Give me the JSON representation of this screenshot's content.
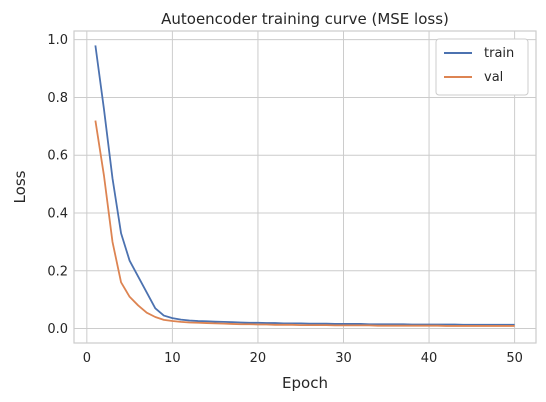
{
  "chart_data": {
    "type": "line",
    "title": "Autoencoder training curve (MSE loss)",
    "xlabel": "Epoch",
    "ylabel": "Loss",
    "xlim": [
      -1.5,
      52.5
    ],
    "ylim": [
      -0.05,
      1.03
    ],
    "xticks": [
      0,
      10,
      20,
      30,
      40,
      50
    ],
    "yticks": [
      0.0,
      0.2,
      0.4,
      0.6,
      0.8,
      1.0
    ],
    "xtick_labels": [
      "0",
      "10",
      "20",
      "30",
      "40",
      "50"
    ],
    "ytick_labels": [
      "0.0",
      "0.2",
      "0.4",
      "0.6",
      "0.8",
      "1.0"
    ],
    "grid": true,
    "legend_position": "top-right",
    "x": [
      1,
      2,
      3,
      4,
      5,
      6,
      7,
      8,
      9,
      10,
      11,
      12,
      13,
      14,
      15,
      16,
      17,
      18,
      19,
      20,
      21,
      22,
      23,
      24,
      25,
      26,
      27,
      28,
      29,
      30,
      31,
      32,
      33,
      34,
      35,
      36,
      37,
      38,
      39,
      40,
      41,
      42,
      43,
      44,
      45,
      46,
      47,
      48,
      49,
      50
    ],
    "series": [
      {
        "name": "train",
        "color": "#4c72b0",
        "values": [
          0.98,
          0.76,
          0.52,
          0.33,
          0.235,
          0.18,
          0.125,
          0.07,
          0.045,
          0.036,
          0.031,
          0.028,
          0.026,
          0.025,
          0.024,
          0.023,
          0.022,
          0.021,
          0.02,
          0.02,
          0.019,
          0.019,
          0.018,
          0.018,
          0.018,
          0.017,
          0.017,
          0.017,
          0.016,
          0.016,
          0.016,
          0.016,
          0.015,
          0.015,
          0.015,
          0.015,
          0.015,
          0.014,
          0.014,
          0.014,
          0.014,
          0.014,
          0.014,
          0.013,
          0.013,
          0.013,
          0.013,
          0.013,
          0.013,
          0.013
        ]
      },
      {
        "name": "val",
        "color": "#dd8452",
        "values": [
          0.72,
          0.53,
          0.3,
          0.16,
          0.11,
          0.08,
          0.055,
          0.04,
          0.03,
          0.026,
          0.023,
          0.021,
          0.02,
          0.019,
          0.018,
          0.017,
          0.016,
          0.015,
          0.015,
          0.014,
          0.014,
          0.013,
          0.013,
          0.013,
          0.012,
          0.012,
          0.012,
          0.012,
          0.011,
          0.011,
          0.011,
          0.011,
          0.011,
          0.01,
          0.01,
          0.01,
          0.01,
          0.01,
          0.01,
          0.01,
          0.01,
          0.009,
          0.009,
          0.009,
          0.009,
          0.009,
          0.009,
          0.009,
          0.009,
          0.009
        ]
      }
    ]
  }
}
